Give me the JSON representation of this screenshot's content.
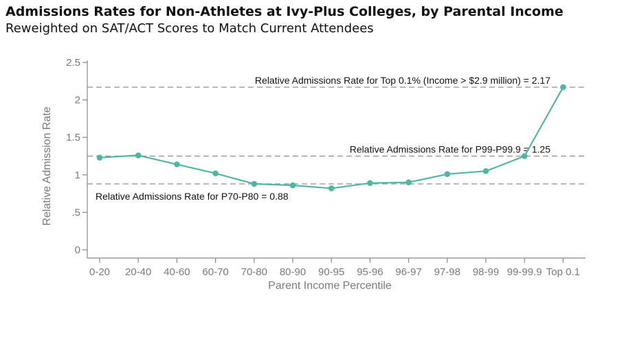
{
  "chart_data": {
    "type": "line",
    "title": "Admissions Rates for Non-Athletes at Ivy-Plus Colleges, by Parental Income",
    "subtitle": "Reweighted on SAT/ACT Scores to Match Current Attendees",
    "xlabel": "Parent Income Percentile",
    "ylabel": "Relative Admission Rate",
    "categories": [
      "0-20",
      "20-40",
      "40-60",
      "60-70",
      "70-80",
      "80-90",
      "90-95",
      "95-96",
      "96-97",
      "97-98",
      "98-99",
      "99-99.9",
      "Top 0.1"
    ],
    "values": [
      1.23,
      1.26,
      1.14,
      1.02,
      0.88,
      0.86,
      0.82,
      0.89,
      0.9,
      1.01,
      1.05,
      1.25,
      2.17
    ],
    "ylim": [
      0,
      2.5
    ],
    "yticks": [
      0,
      0.5,
      1,
      1.5,
      2,
      2.5
    ],
    "ytick_labels": [
      "0",
      ".5",
      "1",
      "1.5",
      "2",
      "2.5"
    ],
    "grid": false,
    "line_color": "#4fb6a6",
    "reference_color": "#9a9a9a",
    "reference_lines": [
      {
        "value": 2.17,
        "label": "Relative Admissions Rate for Top 0.1% (Income > $2.9 million) = 2.17",
        "align": "right"
      },
      {
        "value": 1.25,
        "label": "Relative Admissions Rate for P99-P99.9 = 1.25",
        "align": "right"
      },
      {
        "value": 0.88,
        "label": "Relative Admissions Rate for P70-P80 = 0.88",
        "align": "left"
      }
    ]
  }
}
